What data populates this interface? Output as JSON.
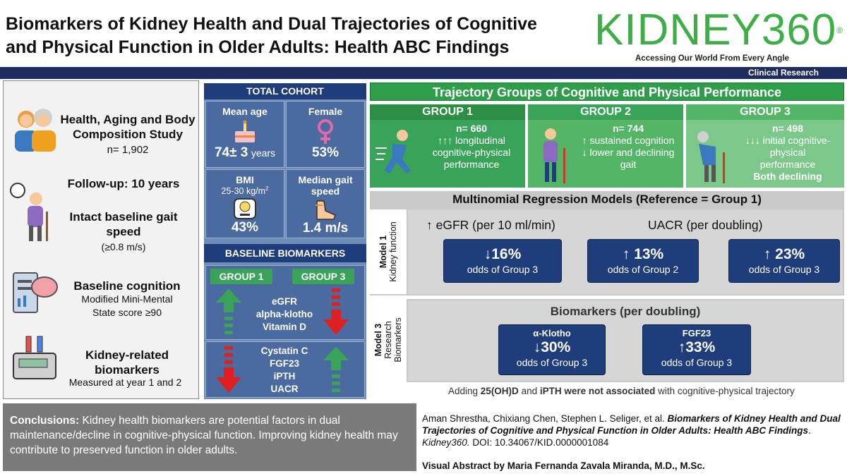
{
  "header": {
    "title_line1": "Biomarkers of Kidney Health and Dual Trajectories of Cognitive",
    "title_line2": "and Physical Function in Older Adults: Health ABC Findings",
    "brand": "KIDNEY360",
    "brand_mark": "®",
    "tagline": "Accessing Our World From Every Angle",
    "section": "Clinical Research"
  },
  "left": {
    "study_line1": "Health, Aging and Body",
    "study_line2": "Composition Study",
    "study_n": "n= 1,902",
    "followup": "Follow-up: 10 years",
    "gait_line1": "Intact baseline gait",
    "gait_line2": "speed",
    "gait_sub": "(≥0.8 m/s)",
    "cog_title": "Baseline cognition",
    "cog_line1": "Modified Mini-Mental",
    "cog_line2": "State score ≥90",
    "kid_line1": "Kidney-related",
    "kid_line2": "biomarkers",
    "kid_sub": "Measured at year 1 and 2"
  },
  "cohort": {
    "head": "TOTAL COHORT",
    "age_label": "Mean age",
    "age_value": "74± 3",
    "age_unit": "years",
    "female_label": "Female",
    "female_value": "53%",
    "bmi_label": "BMI",
    "bmi_range": "25-30 kg/m",
    "bmi_sup": "2",
    "bmi_value": "43%",
    "gait_label_line1": "Median gait",
    "gait_label_line2": "speed",
    "gait_value": "1.4 m/s",
    "bio_head": "BASELINE BIOMARKERS",
    "g1": "GROUP 1",
    "g3": "GROUP 3",
    "set1": [
      "eGFR",
      "alpha-klotho",
      "Vitamin D"
    ],
    "set2": [
      "Cystatin C",
      "FGF23",
      "iPTH",
      "UACR"
    ]
  },
  "trajectory": {
    "head": "Trajectory Groups of Cognitive and Physical Performance",
    "groups": [
      {
        "name": "GROUP 1",
        "n": "n= 660",
        "line1": "↑↑↑ longitudinal",
        "line2": "cognitive-physical",
        "line3": "performance",
        "line4": ""
      },
      {
        "name": "GROUP 2",
        "n": "n= 744",
        "line1": "↑ sustained cognition",
        "line2": "↓ lower and declining",
        "line3": "gait",
        "line4": ""
      },
      {
        "name": "GROUP 3",
        "n": "n= 498",
        "line1": "↓↓↓ initial cognitive-",
        "line2": "physical",
        "line3": "performance",
        "line4": "Both declining"
      }
    ]
  },
  "regression": {
    "head": "Multinomial Regression Models (Reference = Group 1)",
    "m1_side1": "Model 1",
    "m1_side2": "Kidney function",
    "egfr_label": "↑ eGFR (per 10 ml/min)",
    "uacr_label": "UACR (per doubling)",
    "box1_big": "↓16%",
    "box1_small": "odds of Group 3",
    "box2_big": "↑ 13%",
    "box2_small": "odds of Group 2",
    "box3_big": "↑ 23%",
    "box3_small": "odds of Group 3",
    "m3_side1": "Model 3",
    "m3_side2": "Research",
    "m3_side3": "Biomarkers",
    "bio_label": "Biomarkers (per doubling)",
    "klotho_label": "α-Klotho",
    "klotho_big": "↓30%",
    "klotho_small": "odds of Group 3",
    "fgf_label": "FGF23",
    "fgf_big": "↑33%",
    "fgf_small": "odds of Group 3",
    "note_pre": "Adding ",
    "note_b1": "25(OH)D",
    "note_mid": " and ",
    "note_b2": "iPTH were not associated",
    "note_post": " with cognitive-physical trajectory"
  },
  "footer": {
    "concl_label": "Conclusions:",
    "concl_text": " Kidney health biomarkers are potential factors in dual maintenance/decline in cognitive-physical function. Improving kidney health may contribute to preserved function in older adults.",
    "authors": "Aman Shrestha, Chixiang Chen, Stephen L. Seliger, et al. ",
    "paper_title": "Biomarkers of Kidney Health and Dual Trajectories of Cognitive and Physical Function in Older Adults: Health ABC Findings",
    "journal": "Kidney360.",
    "doi": " DOI: 10.34067/KID.0000001084",
    "credit": "Visual Abstract by Maria Fernanda Zavala Miranda, M.D., M.Sc."
  },
  "colors": {
    "green": "#2e9e4a",
    "navy": "#1f3d7a",
    "brand_green": "#3fae49",
    "arrow_red": "#e02020"
  }
}
